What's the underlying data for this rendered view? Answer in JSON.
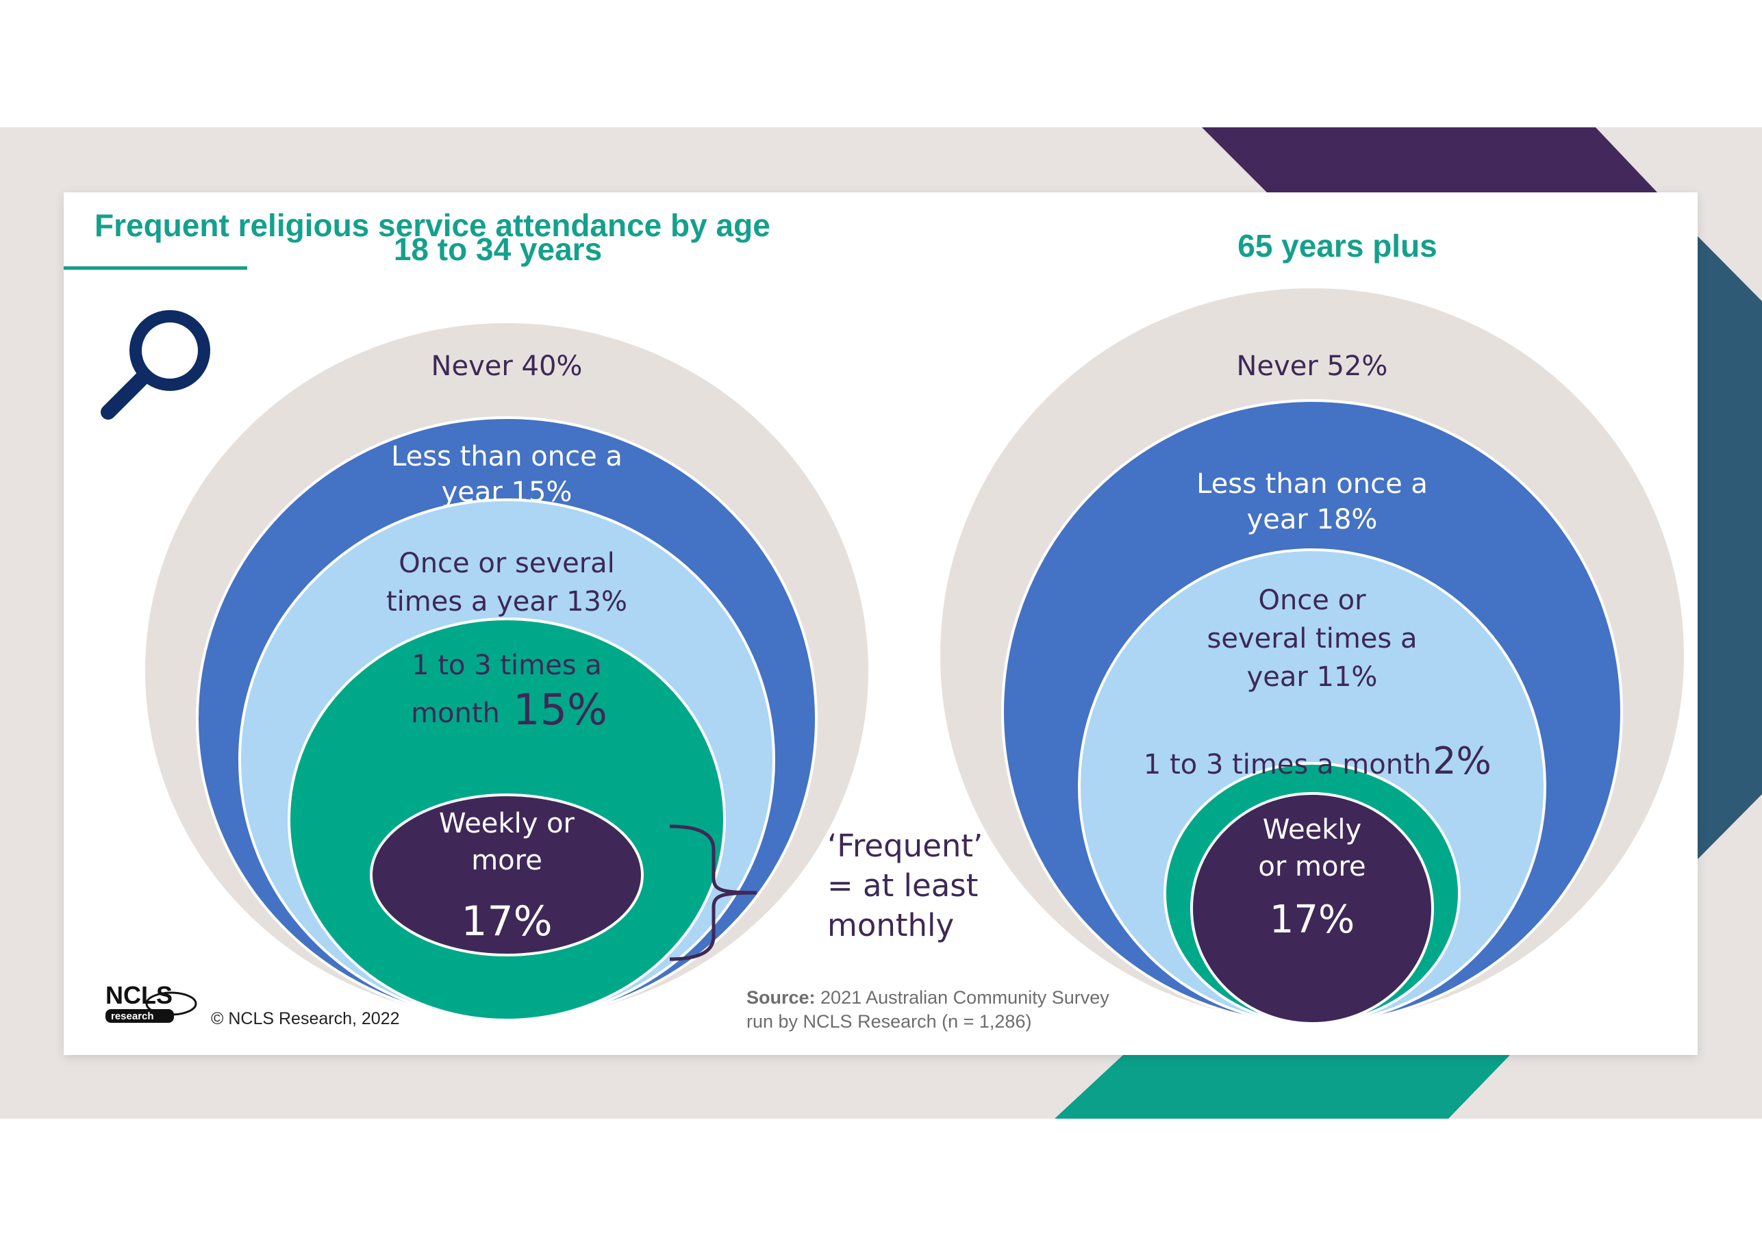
{
  "title": "Frequent religious service attendance by age",
  "note": "‘Frequent’\n= at least\nmonthly",
  "source_label": "Source:",
  "source_text_1": " 2021 Australian Community Survey",
  "source_text_2": "run by NCLS Research (n = 1,286)",
  "copyright": "© NCLS Research, 2022",
  "logo": {
    "line1": "NCLS",
    "line2": "research"
  },
  "icons": {
    "search": "search-icon",
    "logo": "ncls-logo"
  },
  "colors": {
    "title": "#14a08c",
    "never": "#e6e0dc",
    "less_than_once_a_year": "#4472c4",
    "once_or_several_times_a_year": "#acd6f4",
    "one_to_three_times_a_month": "#00a88a",
    "weekly_or_more": "#3f2857",
    "label_dark": "#3d2856",
    "label_light": "#ffffff"
  },
  "chart_data": [
    {
      "type": "nested-circles",
      "title": "18 to 34 years",
      "categories": [
        "Never",
        "Less than once a year",
        "Once or several times a year",
        "1 to 3 times a month",
        "Weekly or more"
      ],
      "values": [
        40,
        15,
        13,
        15,
        17
      ],
      "unit": "%",
      "labels": [
        [
          "Never 40%"
        ],
        [
          "Less than once a",
          "year 15%"
        ],
        [
          "Once or several",
          "times a year 13%"
        ],
        [
          "1 to 3 times a",
          "month"
        ],
        [
          "Weekly or",
          "more"
        ]
      ],
      "big_labels": {
        "3": "15%",
        "4": "17%"
      }
    },
    {
      "type": "nested-circles",
      "title": "65 years plus",
      "categories": [
        "Never",
        "Less than once a year",
        "Once or several times a year",
        "1 to 3 times a month",
        "Weekly or more"
      ],
      "values": [
        52,
        18,
        11,
        2,
        17
      ],
      "unit": "%",
      "labels": [
        [
          "Never 52%"
        ],
        [
          "Less than once a",
          "year 18%"
        ],
        [
          "Once or",
          "several times a",
          "year 11%"
        ],
        [
          "1 to 3 times a month"
        ],
        [
          "Weekly",
          "or more"
        ]
      ],
      "big_labels": {
        "3": "2%",
        "4": "17%"
      }
    }
  ]
}
